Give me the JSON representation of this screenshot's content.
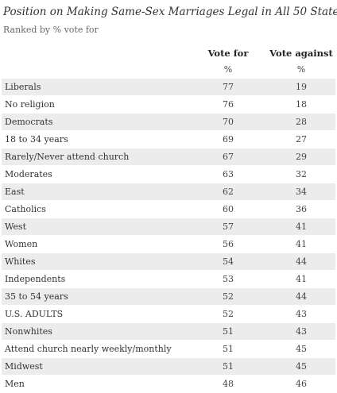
{
  "title": "Position on Making Same-Sex Marriages Legal in All 50 States",
  "subtitle": "Ranked by % vote for",
  "columns": {
    "for": "Vote for",
    "against": "Vote against"
  },
  "units": {
    "for": "%",
    "against": "%"
  },
  "colors": {
    "shaded_row": "#ececec",
    "text": "#333333"
  },
  "chart_data": {
    "type": "table",
    "title": "Position on Making Same-Sex Marriages Legal in All 50 States",
    "subtitle": "Ranked by % vote for",
    "columns": [
      "Vote for",
      "Vote against"
    ],
    "unit": "%",
    "rows": [
      {
        "label": "Liberals",
        "for": 77,
        "against": 19
      },
      {
        "label": "No religion",
        "for": 76,
        "against": 18
      },
      {
        "label": "Democrats",
        "for": 70,
        "against": 28
      },
      {
        "label": "18 to 34 years",
        "for": 69,
        "against": 27
      },
      {
        "label": "Rarely/Never attend church",
        "for": 67,
        "against": 29
      },
      {
        "label": "Moderates",
        "for": 63,
        "against": 32
      },
      {
        "label": "East",
        "for": 62,
        "against": 34
      },
      {
        "label": "Catholics",
        "for": 60,
        "against": 36
      },
      {
        "label": "West",
        "for": 57,
        "against": 41
      },
      {
        "label": "Women",
        "for": 56,
        "against": 41
      },
      {
        "label": "Whites",
        "for": 54,
        "against": 44
      },
      {
        "label": "Independents",
        "for": 53,
        "against": 41
      },
      {
        "label": "35 to 54 years",
        "for": 52,
        "against": 44
      },
      {
        "label": "U.S. ADULTS",
        "for": 52,
        "against": 43
      },
      {
        "label": "Nonwhites",
        "for": 51,
        "against": 43
      },
      {
        "label": "Attend church nearly weekly/monthly",
        "for": 51,
        "against": 45
      },
      {
        "label": "Midwest",
        "for": 51,
        "against": 45
      },
      {
        "label": "Men",
        "for": 48,
        "against": 46
      }
    ]
  }
}
